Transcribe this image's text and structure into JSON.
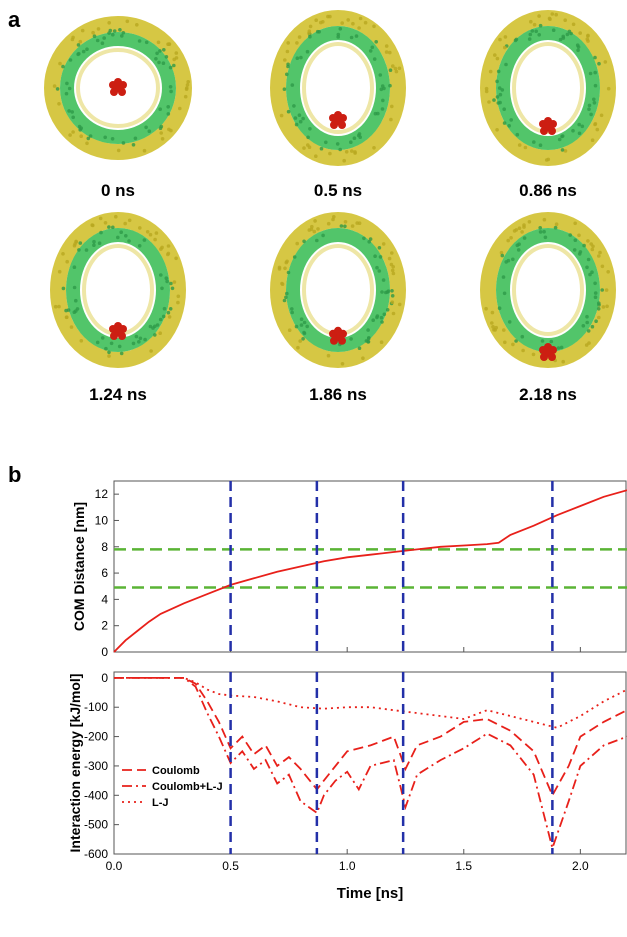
{
  "panel_a": {
    "label": "a",
    "snapshots": [
      {
        "time_label": "0 ns",
        "ion_offset": 0.0
      },
      {
        "time_label": "0.5 ns",
        "ion_offset": 0.55
      },
      {
        "time_label": "0.86 ns",
        "ion_offset": 0.65
      },
      {
        "time_label": "1.24 ns",
        "ion_offset": 0.7
      },
      {
        "time_label": "1.86 ns",
        "ion_offset": 0.78
      },
      {
        "time_label": "2.18 ns",
        "ion_offset": 1.05
      }
    ],
    "colors": {
      "lipid_head": "#d4c43a",
      "lipid_tail": "#3fbf5a",
      "ion": "#cc1e12"
    }
  },
  "panel_b": {
    "label": "b"
  },
  "chart_data": [
    {
      "type": "line",
      "ylabel": "COM Distance [nm]",
      "xlim": [
        0,
        2.2
      ],
      "ylim": [
        0,
        13
      ],
      "yticks": [
        0,
        2,
        4,
        6,
        8,
        10,
        12
      ],
      "series": [
        {
          "color": "#e8201a",
          "style": "solid",
          "x": [
            0,
            0.05,
            0.1,
            0.15,
            0.2,
            0.3,
            0.4,
            0.5,
            0.6,
            0.7,
            0.8,
            0.9,
            1.0,
            1.1,
            1.2,
            1.3,
            1.4,
            1.5,
            1.6,
            1.65,
            1.7,
            1.8,
            1.9,
            2.0,
            2.1,
            2.2
          ],
          "y": [
            0,
            0.9,
            1.6,
            2.3,
            2.9,
            3.7,
            4.4,
            5.1,
            5.6,
            6.1,
            6.5,
            6.9,
            7.2,
            7.4,
            7.6,
            7.8,
            8.0,
            8.1,
            8.2,
            8.3,
            8.9,
            9.6,
            10.4,
            11.1,
            11.8,
            12.3
          ]
        }
      ],
      "hlines": [
        {
          "y": 4.9,
          "color": "#5ab435"
        },
        {
          "y": 7.8,
          "color": "#5ab435"
        }
      ],
      "vlines": [
        {
          "x": 0.5,
          "color": "#2330a8"
        },
        {
          "x": 0.87,
          "color": "#2330a8"
        },
        {
          "x": 1.24,
          "color": "#2330a8"
        },
        {
          "x": 1.88,
          "color": "#2330a8"
        }
      ]
    },
    {
      "type": "line",
      "xlabel": "Time [ns]",
      "ylabel": "Interaction energy [kJ/mol]",
      "xlim": [
        0,
        2.2
      ],
      "ylim": [
        -600,
        20
      ],
      "xticks": [
        0.0,
        0.5,
        1.0,
        1.5,
        2.0
      ],
      "xtick_labels": [
        "0.0",
        "0.5",
        "1.0",
        "1.5",
        "2.0"
      ],
      "yticks": [
        0,
        -100,
        -200,
        -300,
        -400,
        -500,
        -600
      ],
      "legend_position": "lower-left",
      "series": [
        {
          "name": "Coulomb",
          "color": "#e8201a",
          "style": "dash",
          "x": [
            0,
            0.3,
            0.35,
            0.4,
            0.45,
            0.5,
            0.55,
            0.6,
            0.65,
            0.7,
            0.75,
            0.8,
            0.87,
            0.95,
            1.0,
            1.1,
            1.2,
            1.25,
            1.3,
            1.4,
            1.5,
            1.6,
            1.7,
            1.8,
            1.88,
            1.95,
            2.0,
            2.1,
            2.2
          ],
          "y": [
            0,
            0,
            -20,
            -80,
            -150,
            -240,
            -200,
            -260,
            -230,
            -300,
            -270,
            -310,
            -380,
            -300,
            -250,
            -230,
            -200,
            -310,
            -230,
            -200,
            -150,
            -140,
            -180,
            -250,
            -400,
            -300,
            -200,
            -150,
            -110
          ]
        },
        {
          "name": "Coulomb+L-J",
          "color": "#e8201a",
          "style": "dashdot",
          "x": [
            0,
            0.3,
            0.35,
            0.4,
            0.45,
            0.5,
            0.55,
            0.6,
            0.65,
            0.7,
            0.75,
            0.8,
            0.87,
            0.9,
            0.95,
            1.0,
            1.05,
            1.1,
            1.2,
            1.25,
            1.3,
            1.4,
            1.5,
            1.6,
            1.7,
            1.8,
            1.88,
            1.95,
            2.0,
            2.1,
            2.2
          ],
          "y": [
            0,
            0,
            -30,
            -120,
            -200,
            -290,
            -250,
            -310,
            -280,
            -360,
            -330,
            -420,
            -460,
            -400,
            -350,
            -320,
            -380,
            -300,
            -280,
            -440,
            -330,
            -280,
            -240,
            -190,
            -230,
            -330,
            -580,
            -420,
            -300,
            -230,
            -200
          ]
        },
        {
          "name": "L-J",
          "color": "#e8201a",
          "style": "dot",
          "x": [
            0,
            0.3,
            0.35,
            0.4,
            0.45,
            0.5,
            0.6,
            0.7,
            0.8,
            0.9,
            1.0,
            1.1,
            1.2,
            1.3,
            1.4,
            1.5,
            1.6,
            1.7,
            1.8,
            1.9,
            2.0,
            2.1,
            2.2
          ],
          "y": [
            0,
            0,
            -15,
            -40,
            -55,
            -60,
            -65,
            -80,
            -100,
            -105,
            -100,
            -100,
            -110,
            -120,
            -130,
            -140,
            -110,
            -130,
            -150,
            -170,
            -130,
            -80,
            -40
          ]
        }
      ],
      "vlines": [
        {
          "x": 0.5,
          "color": "#2330a8"
        },
        {
          "x": 0.87,
          "color": "#2330a8"
        },
        {
          "x": 1.24,
          "color": "#2330a8"
        },
        {
          "x": 1.88,
          "color": "#2330a8"
        }
      ]
    }
  ]
}
